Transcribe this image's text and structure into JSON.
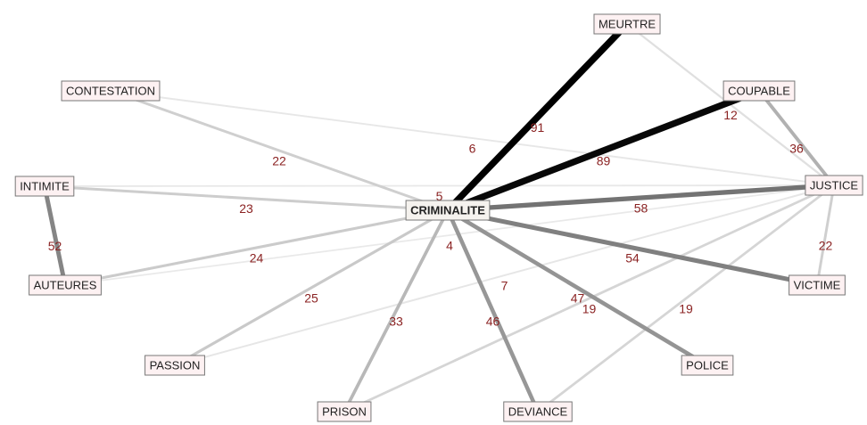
{
  "nodes": [
    {
      "label": "CRIMINALITE"
    },
    {
      "label": "MEURTRE"
    },
    {
      "label": "COUPABLE"
    },
    {
      "label": "CONTESTATION"
    },
    {
      "label": "INTIMITE"
    },
    {
      "label": "JUSTICE"
    },
    {
      "label": "AUTEURES"
    },
    {
      "label": "VICTIME"
    },
    {
      "label": "PASSION"
    },
    {
      "label": "POLICE"
    },
    {
      "label": "PRISON"
    },
    {
      "label": "DEVIANCE"
    }
  ],
  "edges": [
    {
      "source": 0,
      "target": 1,
      "weight": 91
    },
    {
      "source": 0,
      "target": 2,
      "weight": 89
    },
    {
      "source": 0,
      "target": 5,
      "weight": 58
    },
    {
      "source": 0,
      "target": 7,
      "weight": 54
    },
    {
      "source": 0,
      "target": 9,
      "weight": 47
    },
    {
      "source": 0,
      "target": 11,
      "weight": 46
    },
    {
      "source": 0,
      "target": 10,
      "weight": 33
    },
    {
      "source": 0,
      "target": 8,
      "weight": 25
    },
    {
      "source": 0,
      "target": 6,
      "weight": 24
    },
    {
      "source": 0,
      "target": 4,
      "weight": 23
    },
    {
      "source": 0,
      "target": 3,
      "weight": 22
    },
    {
      "source": 4,
      "target": 6,
      "weight": 52
    },
    {
      "source": 2,
      "target": 5,
      "weight": 36
    },
    {
      "source": 5,
      "target": 7,
      "weight": 22
    },
    {
      "source": 5,
      "target": 10,
      "weight": 19
    },
    {
      "source": 5,
      "target": 11,
      "weight": 19
    },
    {
      "source": 1,
      "target": 5,
      "weight": 12
    },
    {
      "source": 3,
      "target": 5,
      "weight": 6
    },
    {
      "source": 8,
      "target": 5,
      "weight": 7
    },
    {
      "source": 4,
      "target": 5,
      "weight": 5
    },
    {
      "source": 6,
      "target": 5,
      "weight": 4
    }
  ]
}
